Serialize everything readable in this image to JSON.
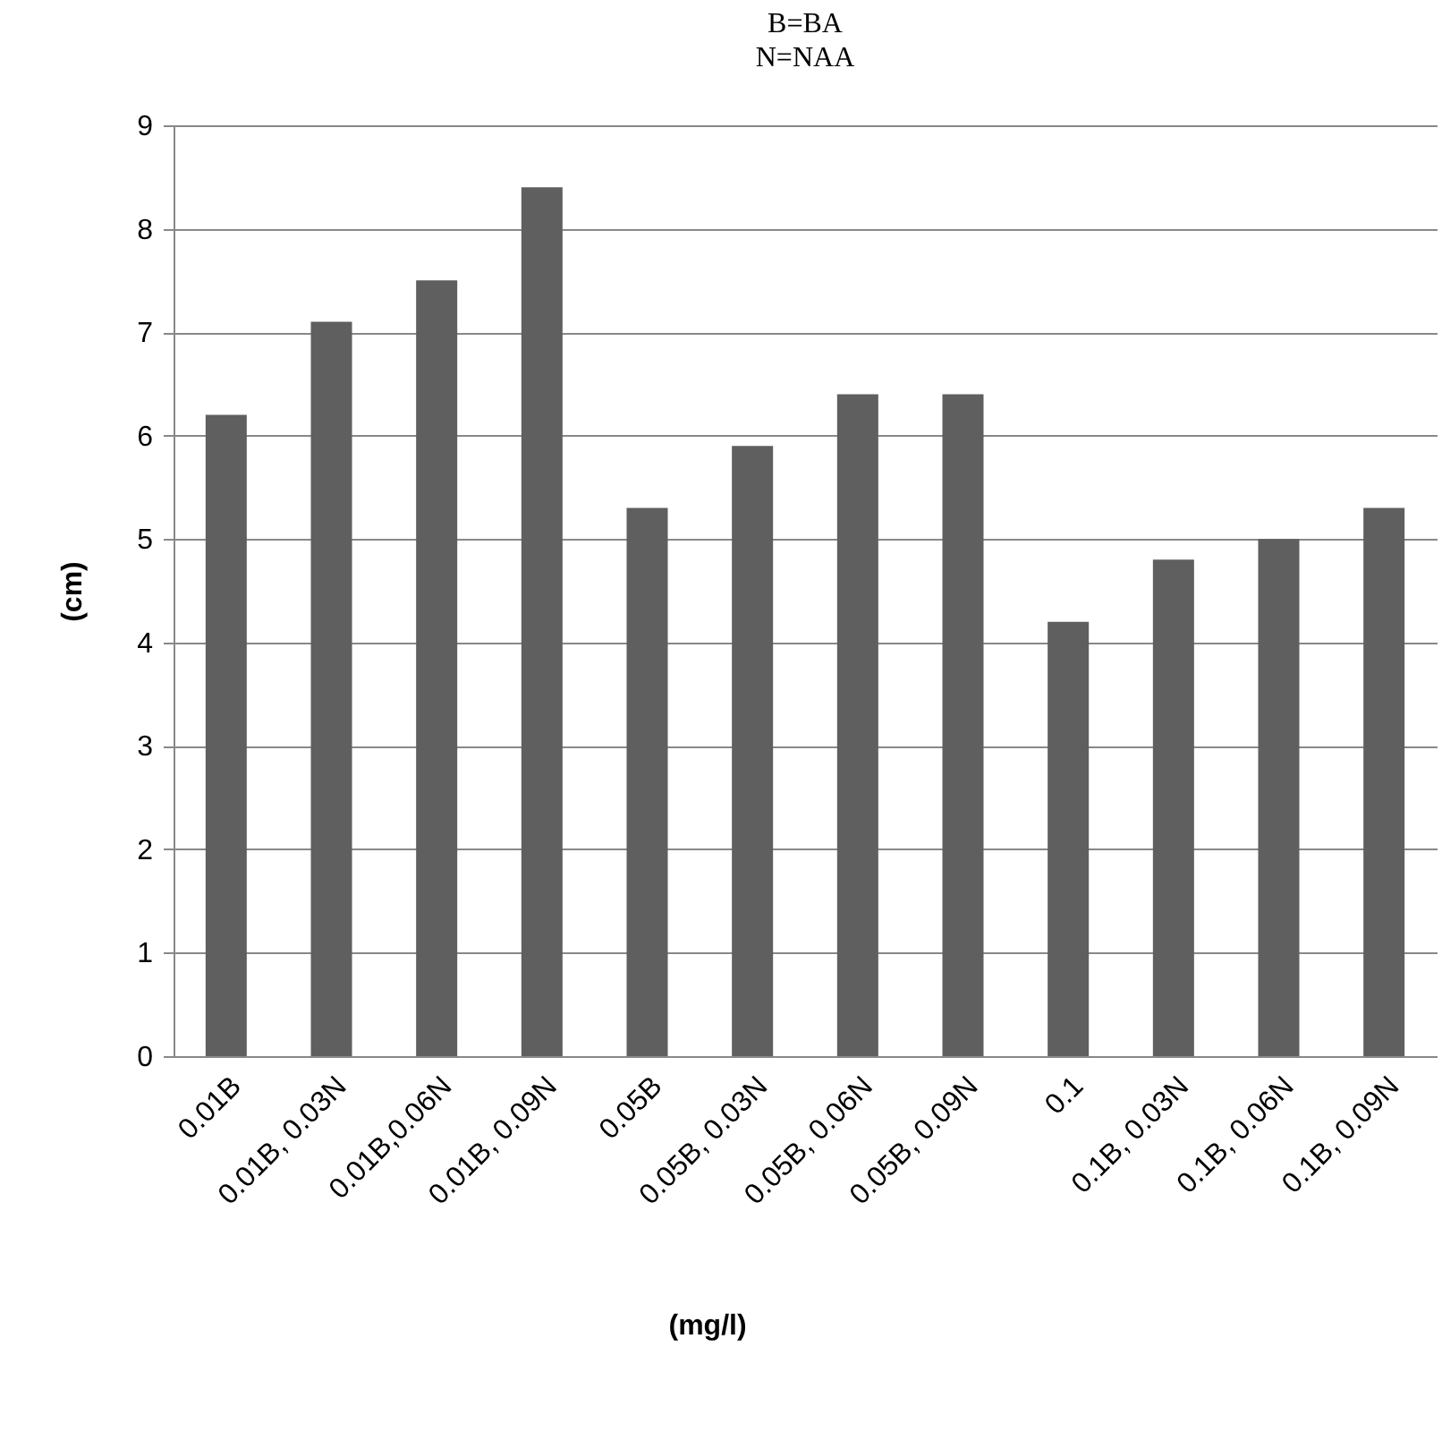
{
  "chart_data": {
    "type": "bar",
    "title": "B=BA",
    "subtitle": "N=NAA",
    "xlabel": "(mg/l)",
    "ylabel": "(cm)",
    "categories": [
      "0.01B",
      "0.01B, 0.03N",
      "0.01B,0.06N",
      "0.01B, 0.09N",
      "0.05B",
      "0.05B, 0.03N",
      "0.05B, 0.06N",
      "0.05B, 0.09N",
      "0.1",
      "0.1B, 0.03N",
      "0.1B, 0.06N",
      "0.1B, 0.09N"
    ],
    "values": [
      6.2,
      7.1,
      7.5,
      8.4,
      5.3,
      5.9,
      6.4,
      6.4,
      4.2,
      4.8,
      5.0,
      5.3
    ],
    "color": "#5f5f5f",
    "ylim": [
      0,
      9
    ],
    "yticks": [
      0,
      1,
      2,
      3,
      4,
      5,
      6,
      7,
      8,
      9
    ],
    "grid": "y"
  }
}
